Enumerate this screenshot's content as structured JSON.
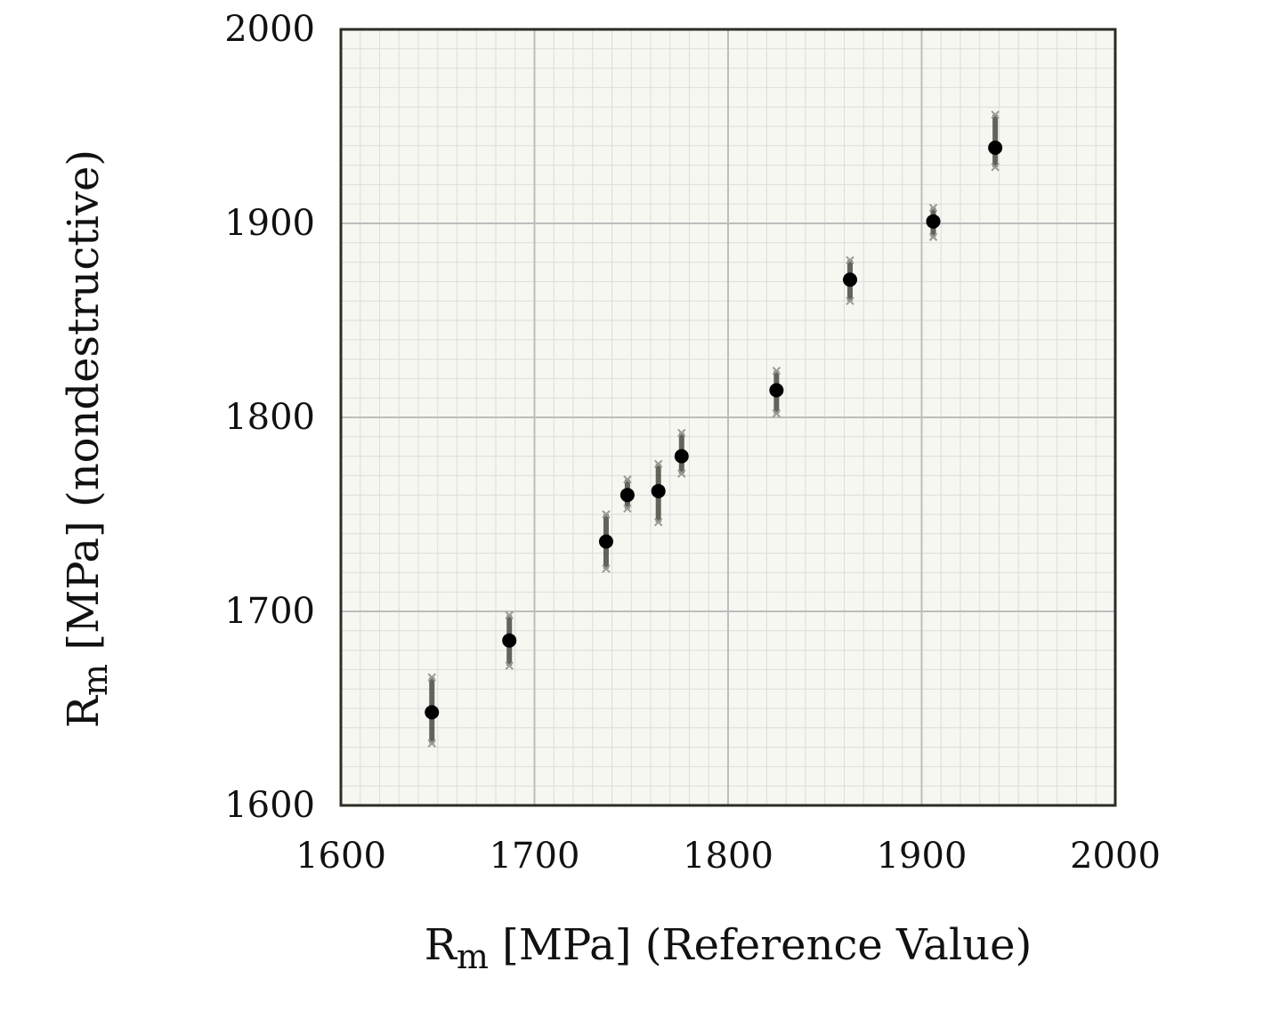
{
  "chart_data": {
    "type": "scatter",
    "title": "",
    "xlabel": {
      "symbol": "R",
      "subscript": "m",
      "rest": " [MPa] (Reference Value)"
    },
    "ylabel": {
      "symbol": "R",
      "subscript": "m",
      "rest": " [MPa] (nondestructive)"
    },
    "xlim": [
      1600,
      2000
    ],
    "ylim": [
      1600,
      2000
    ],
    "x_ticks": [
      "1600",
      "1700",
      "1800",
      "1900",
      "2000"
    ],
    "y_ticks": [
      "1600",
      "1700",
      "1800",
      "1900",
      "2000"
    ],
    "major_grid_step": 100,
    "minor_grid_step": 10,
    "grid": true,
    "legend": "none",
    "colors": {
      "background": "#f6f7f1",
      "minor_grid": "#dcdcdc",
      "major_grid": "#bdbdbd",
      "frame": "#2d2b24",
      "marker": "#000000",
      "error_bar": "#4a4a42",
      "error_marker": "#9a9a92"
    },
    "series": [
      {
        "points": [
          {
            "x": 1647,
            "y": 1648,
            "low": 1632,
            "high": 1666
          },
          {
            "x": 1687,
            "y": 1685,
            "low": 1672,
            "high": 1698
          },
          {
            "x": 1737,
            "y": 1736,
            "low": 1722,
            "high": 1750
          },
          {
            "x": 1748,
            "y": 1760,
            "low": 1753,
            "high": 1768
          },
          {
            "x": 1764,
            "y": 1762,
            "low": 1746,
            "high": 1776
          },
          {
            "x": 1776,
            "y": 1780,
            "low": 1771,
            "high": 1792
          },
          {
            "x": 1825,
            "y": 1814,
            "low": 1802,
            "high": 1824
          },
          {
            "x": 1863,
            "y": 1871,
            "low": 1860,
            "high": 1881
          },
          {
            "x": 1906,
            "y": 1901,
            "low": 1893,
            "high": 1908
          },
          {
            "x": 1938,
            "y": 1939,
            "low": 1929,
            "high": 1956
          }
        ]
      }
    ]
  }
}
